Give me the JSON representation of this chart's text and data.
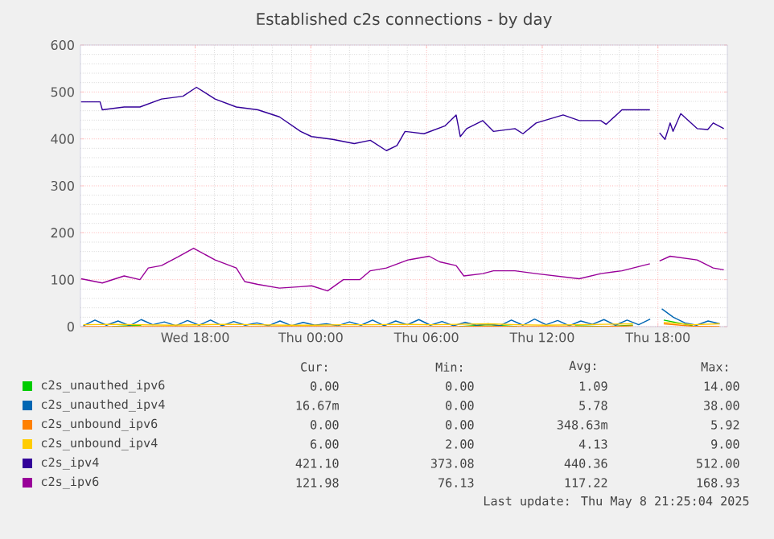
{
  "chart_data": {
    "type": "line",
    "title": "Established c2s connections - by day",
    "xlim": [
      "2025-05-07T12:03",
      "2025-05-08T21:36"
    ],
    "ylim": [
      0,
      600
    ],
    "xticks": [
      {
        "value": "2025-05-07T18:00",
        "label": "Wed 18:00"
      },
      {
        "value": "2025-05-08T00:00",
        "label": "Thu 00:00"
      },
      {
        "value": "2025-05-08T06:00",
        "label": "Thu 06:00"
      },
      {
        "value": "2025-05-08T12:00",
        "label": "Thu 12:00"
      },
      {
        "value": "2025-05-08T18:00",
        "label": "Thu 18:00"
      }
    ],
    "yticks": [
      0,
      100,
      200,
      300,
      400,
      500,
      600
    ],
    "grid": true,
    "legend": "bottom",
    "marker": "none",
    "line_style": "solid",
    "series": [
      {
        "name": "c2s_unauthed_ipv6",
        "color": "#00cc00",
        "x": [
          "2025-05-07T13:42",
          "2025-05-07T15:12",
          "2025-05-07T16:42",
          "2025-05-07T18:12",
          "2025-05-07T19:42",
          "2025-05-07T21:12",
          "2025-05-07T22:42",
          "2025-05-08T00:12",
          "2025-05-08T01:42",
          "2025-05-08T03:12",
          "2025-05-08T04:42",
          "2025-05-08T06:12",
          "2025-05-08T07:42",
          "2025-05-08T09:12",
          "2025-05-08T10:42",
          "2025-05-08T12:12",
          "2025-05-08T13:42",
          "2025-05-08T15:12",
          "2025-05-08T16:42",
          "2025-05-08T18:00",
          "2025-05-08T18:18",
          "2025-05-08T19:48"
        ],
        "values": [
          0,
          3,
          null,
          null,
          null,
          null,
          null,
          null,
          null,
          null,
          null,
          null,
          0,
          4,
          0,
          null,
          2,
          0,
          3,
          null,
          14,
          2
        ]
      },
      {
        "name": "c2s_unauthed_ipv4",
        "color": "#0066b3",
        "x": [
          "2025-05-07T12:12",
          "2025-05-07T12:48",
          "2025-05-07T13:24",
          "2025-05-07T14:00",
          "2025-05-07T14:36",
          "2025-05-07T15:12",
          "2025-05-07T15:48",
          "2025-05-07T16:24",
          "2025-05-07T17:00",
          "2025-05-07T17:36",
          "2025-05-07T18:12",
          "2025-05-07T18:48",
          "2025-05-07T19:24",
          "2025-05-07T20:00",
          "2025-05-07T20:36",
          "2025-05-07T21:12",
          "2025-05-07T21:48",
          "2025-05-07T22:24",
          "2025-05-07T23:00",
          "2025-05-07T23:36",
          "2025-05-08T00:12",
          "2025-05-08T00:48",
          "2025-05-08T01:24",
          "2025-05-08T02:00",
          "2025-05-08T02:36",
          "2025-05-08T03:12",
          "2025-05-08T03:48",
          "2025-05-08T04:24",
          "2025-05-08T05:00",
          "2025-05-08T05:36",
          "2025-05-08T06:12",
          "2025-05-08T06:48",
          "2025-05-08T07:24",
          "2025-05-08T08:00",
          "2025-05-08T08:36",
          "2025-05-08T09:12",
          "2025-05-08T09:48",
          "2025-05-08T10:24",
          "2025-05-08T11:00",
          "2025-05-08T11:36",
          "2025-05-08T12:12",
          "2025-05-08T12:48",
          "2025-05-08T13:24",
          "2025-05-08T14:00",
          "2025-05-08T14:36",
          "2025-05-08T15:12",
          "2025-05-08T15:48",
          "2025-05-08T16:24",
          "2025-05-08T17:00",
          "2025-05-08T17:36",
          "2025-05-08T18:00",
          "2025-05-08T18:12",
          "2025-05-08T18:48",
          "2025-05-08T19:24",
          "2025-05-08T20:00",
          "2025-05-08T20:36",
          "2025-05-08T21:12"
        ],
        "values": [
          2,
          14,
          3,
          12,
          2,
          15,
          4,
          10,
          2,
          13,
          3,
          14,
          2,
          11,
          3,
          8,
          2,
          12,
          2,
          9,
          3,
          6,
          2,
          10,
          3,
          14,
          2,
          12,
          4,
          15,
          3,
          11,
          2,
          9,
          3,
          6,
          2,
          14,
          3,
          16,
          4,
          13,
          2,
          12,
          5,
          15,
          3,
          14,
          4,
          16,
          null,
          38,
          20,
          8,
          3,
          12,
          6
        ]
      },
      {
        "name": "c2s_unbound_ipv6",
        "color": "#ff8000",
        "x": [
          "2025-05-07T12:12",
          "2025-05-07T13:42",
          "2025-05-07T15:12",
          "2025-05-07T16:42",
          "2025-05-07T18:12",
          "2025-05-07T19:42",
          "2025-05-07T21:12",
          "2025-05-07T22:42",
          "2025-05-08T00:12",
          "2025-05-08T01:42",
          "2025-05-08T03:12",
          "2025-05-08T04:42",
          "2025-05-08T06:12",
          "2025-05-08T07:42",
          "2025-05-08T09:12",
          "2025-05-08T10:42",
          "2025-05-08T12:12",
          "2025-05-08T13:42",
          "2025-05-08T15:12",
          "2025-05-08T16:42",
          "2025-05-08T18:00",
          "2025-05-08T18:18",
          "2025-05-08T19:48",
          "2025-05-08T21:12"
        ],
        "values": [
          0,
          0,
          0,
          0,
          0,
          0,
          0,
          0,
          0,
          0,
          0,
          0,
          0,
          0,
          1,
          0,
          0,
          0,
          0,
          2,
          null,
          6,
          1,
          0
        ]
      },
      {
        "name": "c2s_unbound_ipv4",
        "color": "#ffcc00",
        "x": [
          "2025-05-07T12:12",
          "2025-05-07T13:42",
          "2025-05-07T15:12",
          "2025-05-07T16:42",
          "2025-05-07T18:12",
          "2025-05-07T19:42",
          "2025-05-07T21:12",
          "2025-05-07T22:42",
          "2025-05-08T00:12",
          "2025-05-08T01:42",
          "2025-05-08T03:12",
          "2025-05-08T04:42",
          "2025-05-08T06:12",
          "2025-05-08T07:42",
          "2025-05-08T09:12",
          "2025-05-08T10:42",
          "2025-05-08T12:12",
          "2025-05-08T13:42",
          "2025-05-08T15:12",
          "2025-05-08T16:42",
          "2025-05-08T18:00",
          "2025-05-08T18:18",
          "2025-05-08T19:48",
          "2025-05-08T21:12"
        ],
        "values": [
          4,
          5,
          4,
          3,
          4,
          5,
          4,
          3,
          3,
          4,
          4,
          5,
          4,
          5,
          6,
          4,
          3,
          4,
          5,
          6,
          null,
          9,
          4,
          6
        ]
      },
      {
        "name": "c2s_ipv4",
        "color": "#330099",
        "x": [
          "2025-05-07T12:05",
          "2025-05-07T13:04",
          "2025-05-07T13:11",
          "2025-05-07T14:19",
          "2025-05-07T15:08",
          "2025-05-07T16:15",
          "2025-05-07T17:22",
          "2025-05-07T18:04",
          "2025-05-07T19:02",
          "2025-05-07T20:08",
          "2025-05-07T21:15",
          "2025-05-07T22:22",
          "2025-05-07T23:28",
          "2025-05-08T00:02",
          "2025-05-08T01:08",
          "2025-05-08T02:15",
          "2025-05-08T03:05",
          "2025-05-08T03:55",
          "2025-05-08T04:28",
          "2025-05-08T04:53",
          "2025-05-08T05:52",
          "2025-05-08T06:58",
          "2025-05-08T07:32",
          "2025-05-08T07:45",
          "2025-05-08T08:05",
          "2025-05-08T08:55",
          "2025-05-08T09:28",
          "2025-05-08T10:35",
          "2025-05-08T11:00",
          "2025-05-08T11:41",
          "2025-05-08T13:05",
          "2025-05-08T13:55",
          "2025-05-08T15:02",
          "2025-05-08T15:19",
          "2025-05-08T16:08",
          "2025-05-08T17:35",
          "2025-05-08T18:00",
          "2025-05-08T18:05",
          "2025-05-08T18:22",
          "2025-05-08T18:38",
          "2025-05-08T18:47",
          "2025-05-08T19:11",
          "2025-05-08T20:02",
          "2025-05-08T20:35",
          "2025-05-08T20:52",
          "2025-05-08T21:25"
        ],
        "values": [
          479,
          479,
          462,
          468,
          468,
          485,
          491,
          510,
          485,
          468,
          462,
          447,
          416,
          405,
          399,
          390,
          397,
          375,
          386,
          416,
          411,
          428,
          451,
          405,
          422,
          439,
          416,
          422,
          411,
          434,
          451,
          439,
          439,
          431,
          462,
          462,
          null,
          413,
          399,
          434,
          416,
          454,
          422,
          420,
          434,
          422
        ]
      },
      {
        "name": "c2s_ipv6",
        "color": "#990099",
        "x": [
          "2025-05-07T12:05",
          "2025-05-07T13:11",
          "2025-05-07T14:19",
          "2025-05-07T15:08",
          "2025-05-07T15:34",
          "2025-05-07T16:15",
          "2025-05-07T17:05",
          "2025-05-07T17:55",
          "2025-05-07T19:02",
          "2025-05-07T20:08",
          "2025-05-07T20:34",
          "2025-05-07T21:15",
          "2025-05-07T22:22",
          "2025-05-07T23:28",
          "2025-05-08T00:02",
          "2025-05-08T00:52",
          "2025-05-08T01:41",
          "2025-05-08T02:32",
          "2025-05-08T03:05",
          "2025-05-08T03:55",
          "2025-05-08T05:02",
          "2025-05-08T06:08",
          "2025-05-08T06:41",
          "2025-05-08T07:32",
          "2025-05-08T07:56",
          "2025-05-08T08:55",
          "2025-05-08T09:28",
          "2025-05-08T10:35",
          "2025-05-08T11:41",
          "2025-05-08T13:55",
          "2025-05-08T15:02",
          "2025-05-08T16:08",
          "2025-05-08T17:35",
          "2025-05-08T18:00",
          "2025-05-08T18:05",
          "2025-05-08T18:38",
          "2025-05-08T20:02",
          "2025-05-08T20:52",
          "2025-05-08T21:25"
        ],
        "values": [
          102,
          93,
          108,
          100,
          125,
          130,
          148,
          167,
          142,
          125,
          96,
          90,
          82,
          85,
          87,
          76,
          100,
          100,
          119,
          125,
          142,
          150,
          138,
          130,
          108,
          113,
          119,
          119,
          113,
          102,
          113,
          119,
          134,
          null,
          140,
          150,
          142,
          125,
          121
        ]
      }
    ],
    "annotations": [
      "Cur:",
      "Min:",
      "Avg:",
      "Max:",
      "0.00",
      "0.00",
      "1.09",
      "14.00",
      "16.67m",
      "0.00",
      "5.78",
      "38.00",
      "0.00",
      "0.00",
      "348.63m",
      "5.92",
      "6.00",
      "2.00",
      "4.13",
      "9.00",
      "421.10",
      "373.08",
      "440.36",
      "512.00",
      "121.98",
      "76.13",
      "117.22",
      "168.93",
      "Last update: Thu May  8 21:25:04 2025"
    ]
  }
}
